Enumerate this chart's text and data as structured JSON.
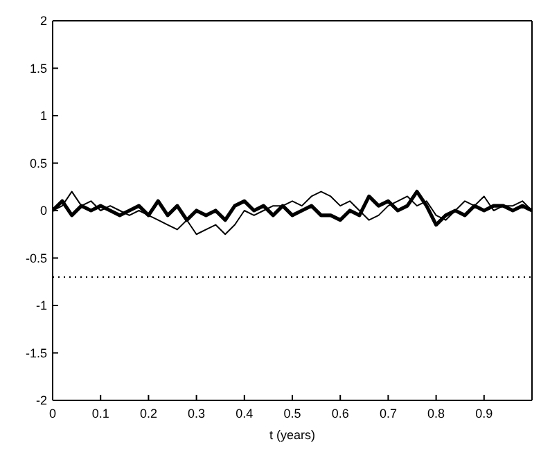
{
  "chart_data": {
    "type": "line",
    "xlabel": "t (years)",
    "xlim": [
      0,
      1
    ],
    "xticks": [
      0,
      0.1,
      0.2,
      0.3,
      0.4,
      0.5,
      0.6,
      0.7,
      0.8,
      0.9
    ],
    "ylim": [
      -2,
      2
    ],
    "yticks": [
      -2,
      -1.5,
      -1,
      -0.5,
      0,
      0.5,
      1,
      1.5,
      2
    ],
    "marker": "none",
    "line_style": "solid",
    "x": [
      0,
      0.02,
      0.04,
      0.06,
      0.08,
      0.1,
      0.12,
      0.14,
      0.16,
      0.18,
      0.2,
      0.22,
      0.24,
      0.26,
      0.28,
      0.3,
      0.32,
      0.34,
      0.36,
      0.38,
      0.4,
      0.42,
      0.44,
      0.46,
      0.48,
      0.5,
      0.52,
      0.54,
      0.56,
      0.58,
      0.6,
      0.62,
      0.64,
      0.66,
      0.68,
      0.7,
      0.72,
      0.74,
      0.76,
      0.78,
      0.8,
      0.82,
      0.84,
      0.86,
      0.88,
      0.9,
      0.92,
      0.94,
      0.96,
      0.98,
      1
    ],
    "series": [
      {
        "color": "#000000",
        "values": [
          0,
          0.1,
          -0.05,
          0.05,
          0,
          0.05,
          0,
          -0.05,
          0,
          0.05,
          -0.05,
          0.1,
          -0.05,
          0.05,
          -0.1,
          0,
          -0.05,
          0,
          -0.1,
          0.05,
          0.1,
          0,
          0.05,
          -0.05,
          0.05,
          -0.05,
          0,
          0.05,
          -0.05,
          -0.05,
          -0.1,
          0,
          -0.05,
          0.15,
          0.05,
          0.1,
          0,
          0.05,
          0.2,
          0.05,
          -0.15,
          -0.05,
          0,
          -0.05,
          0.05,
          0,
          0.05,
          0.05,
          0,
          0.05,
          0
        ]
      },
      {
        "color": "#000000",
        "values": [
          0,
          0.05,
          0.2,
          0.05,
          0.1,
          0,
          0.05,
          0,
          -0.05,
          0,
          -0.05,
          -0.1,
          -0.15,
          -0.2,
          -0.1,
          -0.25,
          -0.2,
          -0.15,
          -0.25,
          -0.15,
          0,
          -0.05,
          0,
          0.05,
          0.05,
          0.1,
          0.05,
          0.15,
          0.2,
          0.15,
          0.05,
          0.1,
          0,
          -0.1,
          -0.05,
          0.05,
          0.1,
          0.15,
          0.05,
          0.1,
          -0.05,
          -0.1,
          0,
          0.1,
          0.05,
          0.15,
          0,
          0.05,
          0.05,
          0.1,
          0
        ]
      }
    ],
    "ref_lines": [
      {
        "axis": "y",
        "value": -0.7,
        "color": "#000000",
        "line_style": "dotted"
      }
    ]
  }
}
